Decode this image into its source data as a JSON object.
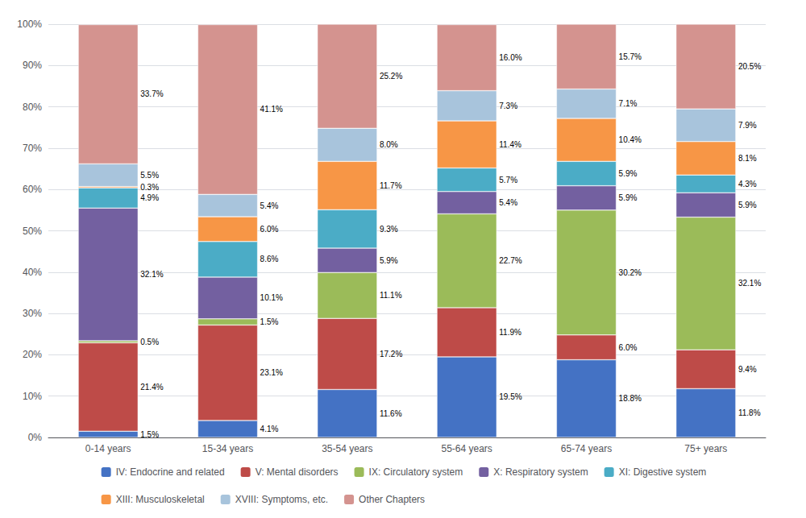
{
  "chart_data": {
    "type": "bar",
    "stacked": true,
    "data_labels": true,
    "grid": true,
    "legend": "bottom",
    "categories": [
      "0-14 years",
      "15-34 years",
      "35-54 years",
      "55-64 years",
      "65-74 years",
      "75+ years"
    ],
    "series": [
      {
        "name": "IV: Endocrine and related",
        "color": "#4472C4",
        "values": [
          1.5,
          4.1,
          11.6,
          19.5,
          18.8,
          11.8
        ],
        "value_labels": [
          "1.5%",
          "4.1%",
          "11.6%",
          "19.5%",
          "18.8%",
          "11.8%"
        ]
      },
      {
        "name": "V: Mental disorders",
        "color": "#BE4B48",
        "values": [
          21.4,
          23.1,
          17.2,
          11.9,
          6.0,
          9.4
        ],
        "value_labels": [
          "21.4%",
          "23.1%",
          "17.2%",
          "11.9%",
          "6.0%",
          "9.4%"
        ]
      },
      {
        "name": "IX: Circulatory system",
        "color": "#9BBB59",
        "values": [
          0.5,
          1.5,
          11.1,
          22.7,
          30.2,
          32.1
        ],
        "value_labels": [
          "0.5%",
          "1.5%",
          "11.1%",
          "22.7%",
          "30.2%",
          "32.1%"
        ]
      },
      {
        "name": "X: Respiratory system",
        "color": "#7360A0",
        "values": [
          32.1,
          10.1,
          5.9,
          5.4,
          5.9,
          5.9
        ],
        "value_labels": [
          "32.1%",
          "10.1%",
          "5.9%",
          "5.4%",
          "5.9%",
          "5.9%"
        ]
      },
      {
        "name": "XI: Digestive system",
        "color": "#4BACC6",
        "values": [
          4.9,
          8.6,
          9.3,
          5.7,
          5.9,
          4.3
        ],
        "value_labels": [
          "4.9%",
          "8.6%",
          "9.3%",
          "5.7%",
          "5.9%",
          "4.3%"
        ]
      },
      {
        "name": "XIII: Musculoskeletal",
        "color": "#F79646",
        "values": [
          0.3,
          6.0,
          11.7,
          11.4,
          10.4,
          8.1
        ],
        "value_labels": [
          "0.3%",
          "6.0%",
          "11.7%",
          "11.4%",
          "10.4%",
          "8.1%"
        ]
      },
      {
        "name": "XVIII: Symptoms, etc.",
        "color": "#A8C4DC",
        "values": [
          5.5,
          5.4,
          8.0,
          7.3,
          7.1,
          7.9
        ],
        "value_labels": [
          "5.5%",
          "5.4%",
          "8.0%",
          "7.3%",
          "7.1%",
          "7.9%"
        ]
      },
      {
        "name": "Other Chapters",
        "color": "#D4938F",
        "values": [
          33.7,
          41.1,
          25.2,
          16.0,
          15.7,
          20.5
        ],
        "value_labels": [
          "33.7%",
          "41.1%",
          "25.2%",
          "16.0%",
          "15.7%",
          "20.5%"
        ]
      }
    ],
    "ylim": [
      0,
      100
    ],
    "yticks": [
      {
        "value": 0,
        "label": "0%"
      },
      {
        "value": 10,
        "label": "10%"
      },
      {
        "value": 20,
        "label": "20%"
      },
      {
        "value": 30,
        "label": "30%"
      },
      {
        "value": 40,
        "label": "40%"
      },
      {
        "value": 50,
        "label": "50%"
      },
      {
        "value": 60,
        "label": "60%"
      },
      {
        "value": 70,
        "label": "70%"
      },
      {
        "value": 80,
        "label": "80%"
      },
      {
        "value": 90,
        "label": "90%"
      },
      {
        "value": 100,
        "label": "100%"
      }
    ]
  }
}
